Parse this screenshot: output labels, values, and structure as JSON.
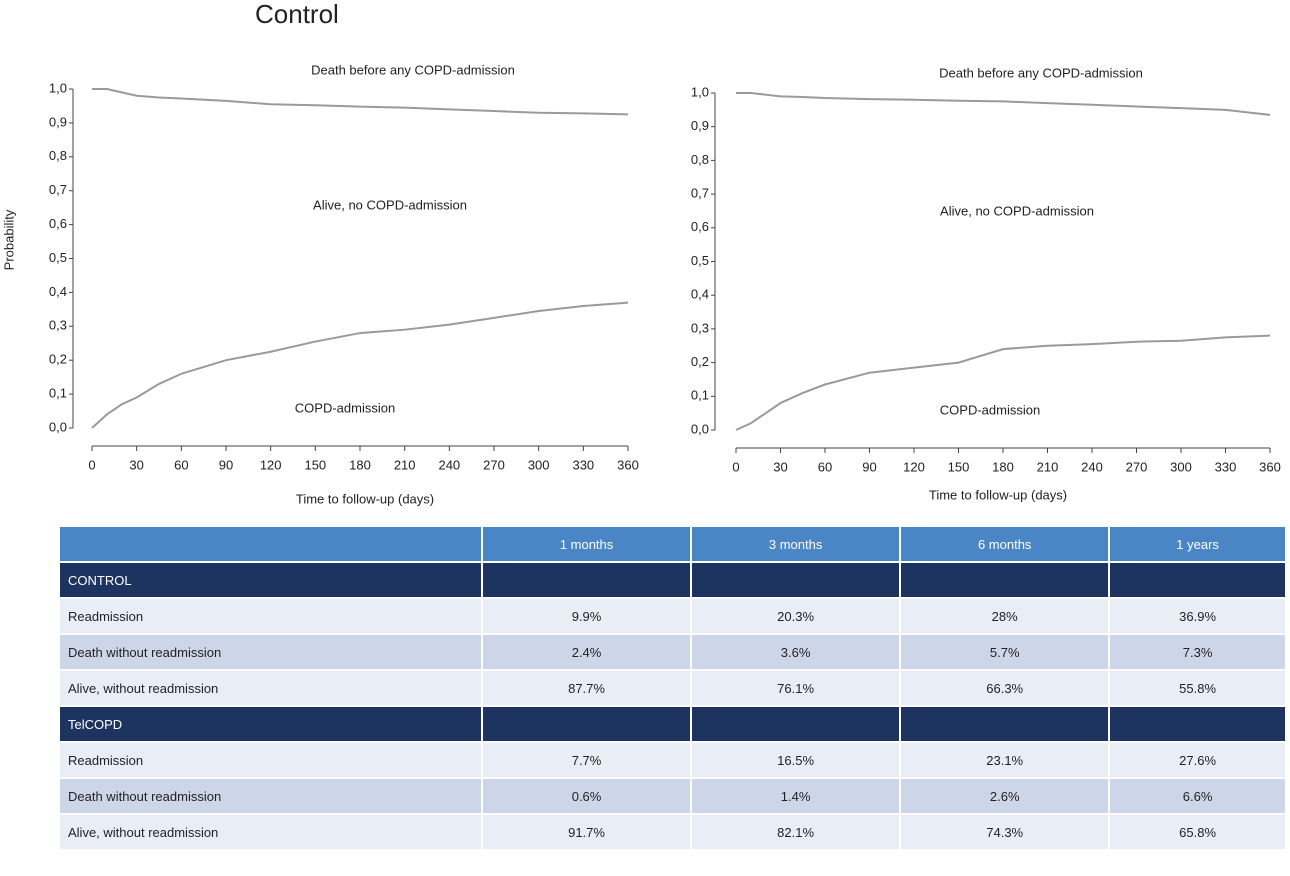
{
  "chart_data": [
    {
      "type": "line",
      "title": "Control",
      "ylabel": "Probability",
      "xlabel": "Time to follow-up (days)",
      "annotations": [
        "Death before any COPD-admission",
        "Alive, no COPD-admission",
        "COPD-admission"
      ],
      "x": [
        0,
        10,
        20,
        30,
        45,
        60,
        90,
        120,
        150,
        180,
        210,
        240,
        270,
        300,
        330,
        360
      ],
      "series": [
        {
          "color": "#9a9a9a",
          "values": [
            1,
            1,
            0.99,
            0.98,
            0.975,
            0.972,
            0.965,
            0.955,
            0.952,
            0.948,
            0.945,
            0.94,
            0.935,
            0.93,
            0.928,
            0.925
          ]
        },
        {
          "color": "#9a9a9a",
          "values": [
            0,
            0.04,
            0.07,
            0.09,
            0.13,
            0.16,
            0.2,
            0.225,
            0.255,
            0.28,
            0.29,
            0.305,
            0.325,
            0.345,
            0.36,
            0.37
          ]
        }
      ],
      "xlim": [
        0,
        360
      ],
      "ylim": [
        0,
        1
      ],
      "xticks": [
        0,
        30,
        60,
        90,
        120,
        150,
        180,
        210,
        240,
        270,
        300,
        330,
        360
      ],
      "yticks": [
        {
          "value": 0,
          "label": "0,0"
        },
        {
          "value": 0.1,
          "label": "0,1"
        },
        {
          "value": 0.2,
          "label": "0,2"
        },
        {
          "value": 0.3,
          "label": "0,3"
        },
        {
          "value": 0.4,
          "label": "0,4"
        },
        {
          "value": 0.5,
          "label": "0,5"
        },
        {
          "value": 0.6,
          "label": "0,6"
        },
        {
          "value": 0.7,
          "label": "0,7"
        },
        {
          "value": 0.8,
          "label": "0,8"
        },
        {
          "value": 0.9,
          "label": "0,9"
        },
        {
          "value": 1,
          "label": "1,0"
        }
      ]
    },
    {
      "type": "line",
      "xlabel": "Time to follow-up (days)",
      "annotations": [
        "Death before any COPD-admission",
        "Alive, no COPD-admission",
        "COPD-admission"
      ],
      "x": [
        0,
        10,
        20,
        30,
        45,
        60,
        90,
        120,
        150,
        180,
        210,
        240,
        270,
        300,
        330,
        360
      ],
      "series": [
        {
          "color": "#9a9a9a",
          "values": [
            1,
            1,
            0.995,
            0.99,
            0.988,
            0.985,
            0.982,
            0.98,
            0.977,
            0.975,
            0.97,
            0.965,
            0.96,
            0.955,
            0.95,
            0.935
          ]
        },
        {
          "color": "#9a9a9a",
          "values": [
            0,
            0.02,
            0.05,
            0.08,
            0.11,
            0.135,
            0.17,
            0.185,
            0.2,
            0.24,
            0.25,
            0.255,
            0.262,
            0.265,
            0.275,
            0.28
          ]
        }
      ],
      "xlim": [
        0,
        360
      ],
      "ylim": [
        0,
        1
      ],
      "xticks": [
        0,
        30,
        60,
        90,
        120,
        150,
        180,
        210,
        240,
        270,
        300,
        330,
        360
      ],
      "yticks": [
        {
          "value": 0,
          "label": "0,0"
        },
        {
          "value": 0.1,
          "label": "0,1"
        },
        {
          "value": 0.2,
          "label": "0,2"
        },
        {
          "value": 0.3,
          "label": "0,3"
        },
        {
          "value": 0.4,
          "label": "0,4"
        },
        {
          "value": 0.5,
          "label": "0,5"
        },
        {
          "value": 0.6,
          "label": "0,6"
        },
        {
          "value": 0.7,
          "label": "0,7"
        },
        {
          "value": 0.8,
          "label": "0,8"
        },
        {
          "value": 0.9,
          "label": "0,9"
        },
        {
          "value": 1,
          "label": "1,0"
        }
      ]
    }
  ],
  "table": {
    "columns": [
      "1 months",
      "3 months",
      "6 months",
      "1 years"
    ],
    "groups": [
      {
        "name": "CONTROL",
        "rows": [
          {
            "label": "Readmission",
            "cells": [
              "9.9%",
              "20.3%",
              "28%",
              "36.9%"
            ]
          },
          {
            "label": "Death without readmission",
            "cells": [
              "2.4%",
              "3.6%",
              "5.7%",
              "7.3%"
            ]
          },
          {
            "label": "Alive, without readmission",
            "cells": [
              "87.7%",
              "76.1%",
              "66.3%",
              "55.8%"
            ]
          }
        ]
      },
      {
        "name": "TelCOPD",
        "rows": [
          {
            "label": "Readmission",
            "cells": [
              "7.7%",
              "16.5%",
              "23.1%",
              "27.6%"
            ]
          },
          {
            "label": "Death without readmission",
            "cells": [
              "0.6%",
              "1.4%",
              "2.6%",
              "6.6%"
            ]
          },
          {
            "label": "Alive, without readmission",
            "cells": [
              "91.7%",
              "82.1%",
              "74.3%",
              "65.8%"
            ]
          }
        ]
      }
    ]
  }
}
